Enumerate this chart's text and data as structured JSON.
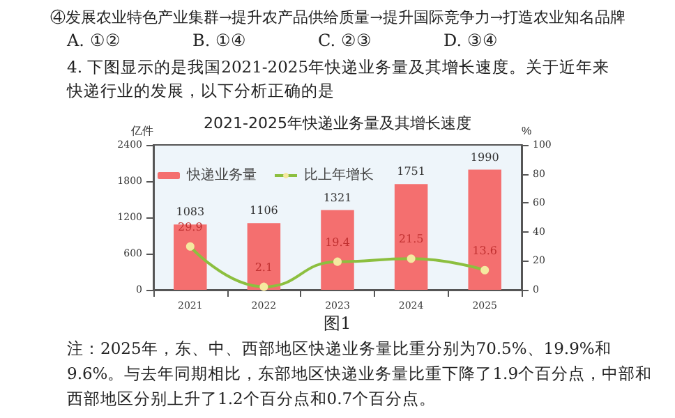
{
  "chart_data": {
    "type": "bar",
    "title": "2021-2025年快递业务量及其增长速度",
    "categories": [
      "2021",
      "2022",
      "2023",
      "2024",
      "2025"
    ],
    "series": [
      {
        "name": "快递业务量",
        "color": "#f46f6f",
        "values": [
          1083,
          1106,
          1321,
          1751,
          1990
        ]
      },
      {
        "name": "比上年增长",
        "type": "line",
        "axis": "y2",
        "color": "#8cbf3f",
        "values": [
          29.9,
          2.1,
          19.4,
          21.5,
          13.6
        ]
      }
    ],
    "ylabel": "亿件",
    "y2label": "%",
    "ylim": [
      0,
      2400
    ],
    "yticks": [
      0,
      600,
      1200,
      1800,
      2400
    ],
    "y2lim": [
      0,
      100
    ],
    "y2ticks": [
      0,
      20,
      40,
      60,
      80,
      100
    ],
    "legend": "top left",
    "data_labels": true,
    "marker": "circle",
    "annotations": [
      "④发展农业特色产业集群→提升农产品供给质量→提升国际竞争力→打造农业知名品牌",
      "A. ①②",
      "B. ①④",
      "C. ②③",
      "D. ③④",
      "4. 下图显示的是我国2021-2025年快递业务量及其增长速度。关于近年来快递行业的发展，以下分析正确的是",
      "图1",
      "注：2025年，东、中、西部地区快递业务量比重分别为70.5%、19.9%和9.6%。与去年同期相比，东部地区快递业务量比重下降了1.9个百分点，中部和西部地区分别上升了1.2个百分点和0.7个百分点。"
    ]
  }
}
